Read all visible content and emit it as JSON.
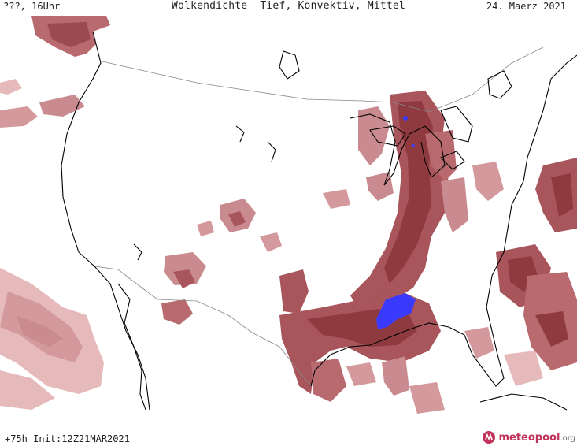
{
  "header": {
    "run_label": "???, 16Uhr",
    "title": "Wolkendichte  Tief, Konvektiv, Mittel",
    "date": "24. Maerz 2021"
  },
  "footer": {
    "init": "+75h Init:12Z21MAR2021",
    "logo_main": "meteopool",
    "logo_suffix": ".org"
  },
  "colors": {
    "cloud_low": "#e6b9ba",
    "cloud_mid": "#c98b8f",
    "cloud_high": "#8e3a3f",
    "convective": "#3a3aff",
    "coast": "#000000",
    "border": "#888888"
  },
  "icons": {
    "logo": "meteopool-logo-icon"
  }
}
